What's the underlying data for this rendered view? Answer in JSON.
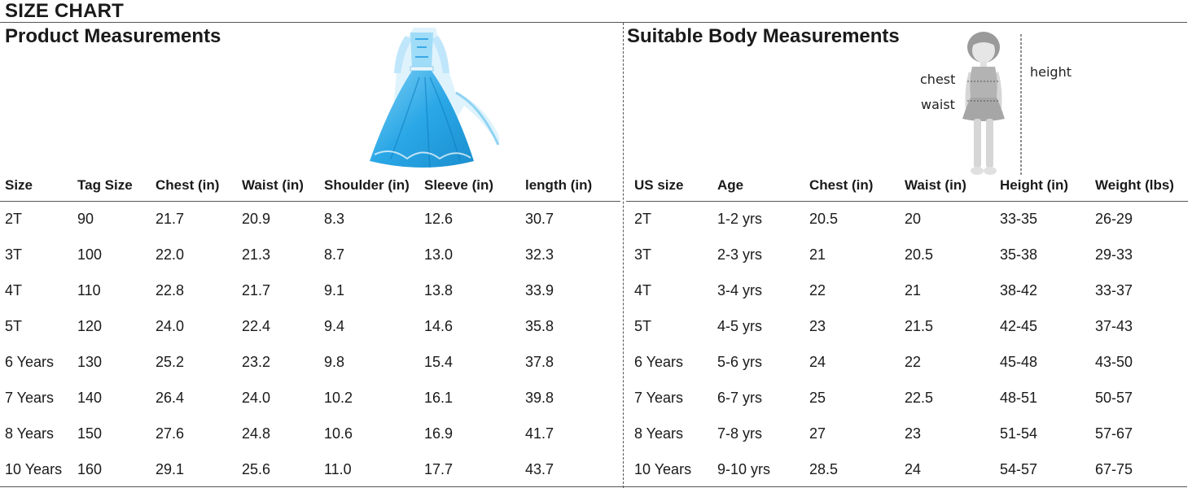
{
  "title": "SIZE CHART",
  "product": {
    "heading": "Product Measurements",
    "columns": [
      "Size",
      "Tag Size",
      "Chest (in)",
      "Waist (in)",
      "Shoulder (in)",
      "Sleeve (in)",
      "length (in)"
    ],
    "rows": [
      [
        "2T",
        "90",
        "21.7",
        "20.9",
        "8.3",
        "12.6",
        "30.7"
      ],
      [
        "3T",
        "100",
        "22.0",
        "21.3",
        "8.7",
        "13.0",
        "32.3"
      ],
      [
        "4T",
        "110",
        "22.8",
        "21.7",
        "9.1",
        "13.8",
        "33.9"
      ],
      [
        "5T",
        "120",
        "24.0",
        "22.4",
        "9.4",
        "14.6",
        "35.8"
      ],
      [
        "6 Years",
        "130",
        "25.2",
        "23.2",
        "9.8",
        "15.4",
        "37.8"
      ],
      [
        "7 Years",
        "140",
        "26.4",
        "24.0",
        "10.2",
        "16.1",
        "39.8"
      ],
      [
        "8 Years",
        "150",
        "27.6",
        "24.8",
        "10.6",
        "16.9",
        "41.7"
      ],
      [
        "10 Years",
        "160",
        "29.1",
        "25.6",
        "11.0",
        "17.7",
        "43.7"
      ]
    ]
  },
  "body": {
    "heading": "Suitable Body Measurements",
    "figure_labels": {
      "chest": "chest",
      "waist": "waist",
      "height": "height"
    },
    "columns": [
      "US size",
      "Age",
      "Chest (in)",
      "Waist (in)",
      "Height (in)",
      "Weight (lbs)"
    ],
    "rows": [
      [
        "2T",
        "1-2 yrs",
        "20.5",
        "20",
        "33-35",
        "26-29"
      ],
      [
        "3T",
        "2-3 yrs",
        "21",
        "20.5",
        "35-38",
        "29-33"
      ],
      [
        "4T",
        "3-4 yrs",
        "22",
        "21",
        "38-42",
        "33-37"
      ],
      [
        "5T",
        "4-5 yrs",
        "23",
        "21.5",
        "42-45",
        "37-43"
      ],
      [
        "6 Years",
        "5-6 yrs",
        "24",
        "22",
        "45-48",
        "43-50"
      ],
      [
        "7 Years",
        "6-7 yrs",
        "25",
        "22.5",
        "48-51",
        "50-57"
      ],
      [
        "8 Years",
        "7-8 yrs",
        "27",
        "23",
        "51-54",
        "57-67"
      ],
      [
        "10 Years",
        "9-10 yrs",
        "28.5",
        "24",
        "54-57",
        "67-75"
      ]
    ]
  },
  "colors": {
    "dress_blue": "#2aa7e6",
    "dress_light": "#bfe6fb",
    "figure_gray": "#c8c8c8"
  }
}
